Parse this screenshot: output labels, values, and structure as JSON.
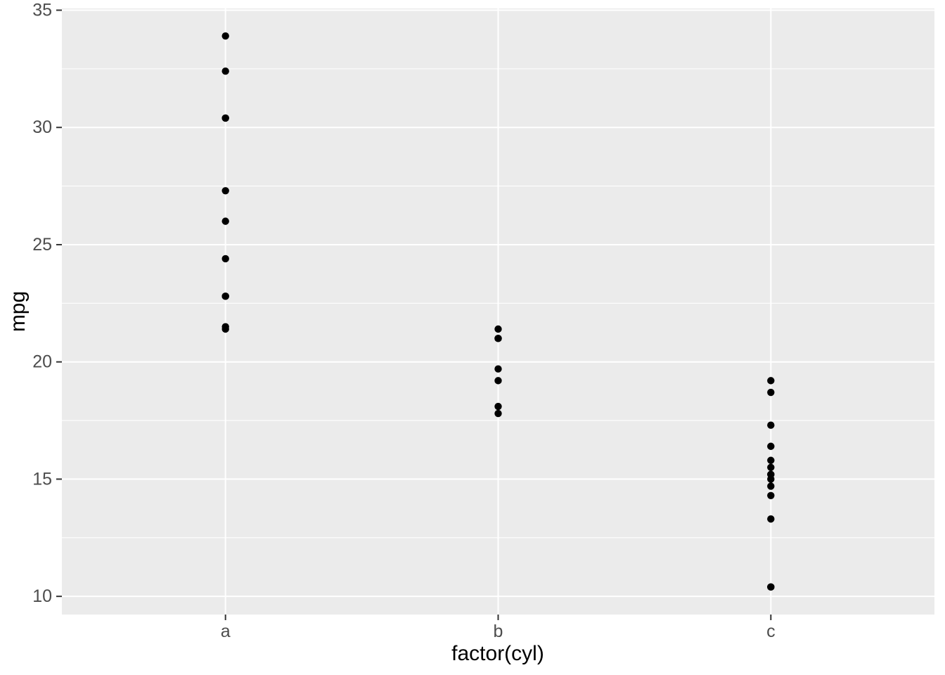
{
  "chart_data": {
    "type": "scatter",
    "title": "",
    "xlabel": "factor(cyl)",
    "ylabel": "mpg",
    "categories": [
      "a",
      "b",
      "c"
    ],
    "series": [
      {
        "name": "a",
        "values": [
          33.9,
          32.4,
          30.4,
          30.4,
          27.3,
          26.0,
          24.4,
          22.8,
          22.8,
          21.5,
          21.4
        ]
      },
      {
        "name": "b",
        "values": [
          21.4,
          21.0,
          21.0,
          19.7,
          19.2,
          18.1,
          17.8
        ]
      },
      {
        "name": "c",
        "values": [
          19.2,
          18.7,
          17.3,
          16.4,
          15.8,
          15.5,
          15.2,
          15.2,
          15.0,
          14.7,
          14.3,
          13.3,
          10.4,
          10.4
        ]
      }
    ],
    "y_tick_labels": [
      "10",
      "15",
      "20",
      "25",
      "30",
      "35"
    ],
    "y_major_ticks": [
      10,
      15,
      20,
      25,
      30,
      35
    ],
    "y_minor_gridlines": [
      12.5,
      17.5,
      22.5,
      27.5,
      32.5
    ],
    "ylim": [
      9.225,
      35.075
    ],
    "grid": "on",
    "legend": "none",
    "colors": {
      "figure_background": "#FFFFFF",
      "panel_background": "#EBEBEB",
      "gridline": "#FFFFFF",
      "point": "#000000",
      "axis_tick": "#333333",
      "tick_label": "#4D4D4D",
      "axis_title": "#000000"
    }
  }
}
